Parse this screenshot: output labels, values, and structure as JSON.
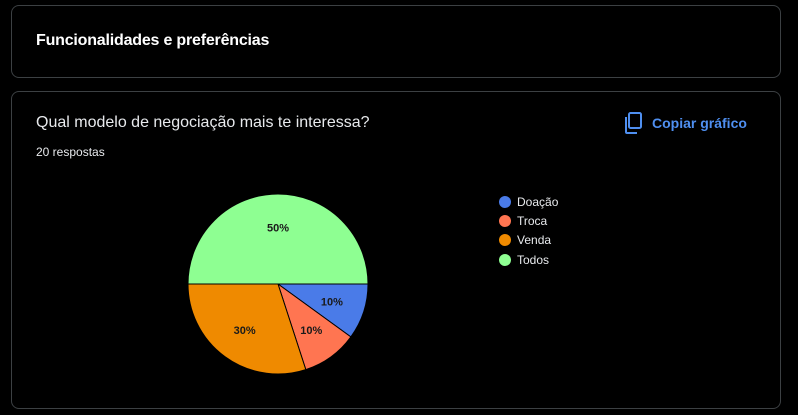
{
  "section": {
    "title": "Funcionalidades e preferências"
  },
  "question": {
    "title": "Qual modelo de negociação mais te interessa?",
    "response_count": "20 respostas",
    "copy_label": "Copiar gráfico",
    "copy_icon": "copy-icon"
  },
  "colors": {
    "background": "#000000",
    "card_border": "#3c4043",
    "accent": "#4f8ff0"
  },
  "chart_data": {
    "type": "pie",
    "categories": [
      "Doação",
      "Troca",
      "Venda",
      "Todos"
    ],
    "values": [
      10,
      10,
      30,
      50
    ],
    "labels": [
      "10%",
      "10%",
      "30%",
      "50%"
    ],
    "colors": [
      "#4a7be8",
      "#ff7551",
      "#ef8a00",
      "#8eff92"
    ],
    "legend_position": "right"
  }
}
